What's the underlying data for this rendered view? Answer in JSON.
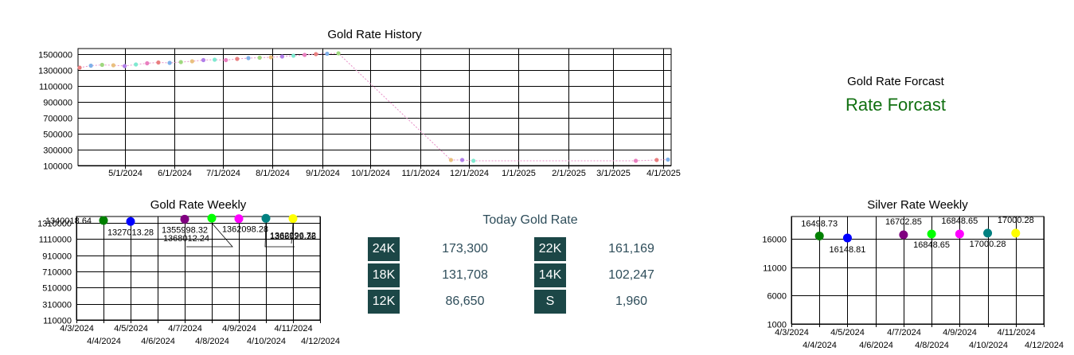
{
  "chart_data": [
    {
      "type": "scatter",
      "title": "Gold Rate History",
      "xlabel": "",
      "ylabel": "",
      "ylim": [
        100000,
        1500000
      ],
      "y_ticks": [
        1500000,
        1300000,
        1100000,
        900000,
        700000,
        500000,
        300000,
        100000
      ],
      "x_ticks": [
        "5/1/2024",
        "6/1/2024",
        "7/1/2024",
        "8/1/2024",
        "9/1/2024",
        "10/1/2024",
        "11/1/2024",
        "12/1/2024",
        "1/1/2025",
        "2/1/2025",
        "3/1/2025",
        "4/1/2025"
      ],
      "xlim": [
        "4/2/2024",
        "4/6/2025"
      ],
      "grid": true,
      "series": [
        {
          "x": [
            "4/3/2024",
            "4/10/2024",
            "4/17/2024",
            "4/24/2024",
            "5/1/2024",
            "5/8/2024",
            "5/15/2024",
            "5/22/2024",
            "5/29/2024",
            "6/5/2024",
            "6/12/2024",
            "6/19/2024",
            "6/26/2024",
            "7/3/2024",
            "7/10/2024",
            "7/17/2024",
            "7/24/2024",
            "7/31/2024",
            "8/7/2024",
            "8/14/2024",
            "8/21/2024",
            "8/28/2024",
            "9/4/2024",
            "9/11/2024",
            "11/20/2024",
            "11/27/2024",
            "12/4/2024",
            "3/15/2025",
            "3/28/2025",
            "4/4/2025"
          ],
          "y": [
            1330000,
            1355000,
            1365000,
            1360000,
            1350000,
            1370000,
            1385000,
            1395000,
            1390000,
            1400000,
            1410000,
            1425000,
            1430000,
            1425000,
            1440000,
            1450000,
            1455000,
            1460000,
            1470000,
            1480000,
            1490000,
            1500000,
            1505000,
            1510000,
            170000,
            170000,
            160000,
            160000,
            170000,
            175000
          ]
        }
      ]
    },
    {
      "type": "scatter",
      "title": "Gold Rate Weekly",
      "xlabel": "",
      "ylabel": "",
      "ylim": [
        110000,
        1310000
      ],
      "y_ticks": [
        1310000,
        1110000,
        910000,
        710000,
        510000,
        310000,
        110000
      ],
      "x_ticks": [
        "4/3/2024",
        "4/4/2024",
        "4/5/2024",
        "4/6/2024",
        "4/7/2024",
        "4/8/2024",
        "4/9/2024",
        "4/10/2024",
        "4/11/2024",
        "4/12/2024"
      ],
      "grid": true,
      "series": [
        {
          "x": [
            "4/4/2024",
            "4/5/2024",
            "4/7/2024",
            "4/8/2024",
            "4/9/2024",
            "4/10/2024",
            "4/11/2024"
          ],
          "y": [
            1340018.64,
            1327013.28,
            1355998.32,
            1368012.24,
            1362098.28,
            1366029.36,
            1362996.72
          ],
          "labels": [
            "1340018.64",
            "1327013.28",
            "1355998.32",
            "1368012.24",
            "1362098.28",
            "1366029.36",
            "1362996.72"
          ],
          "colors": [
            "#008000",
            "#0000ff",
            "#800080",
            "#00ff00",
            "#ff00ff",
            "#008080",
            "#ffff00"
          ]
        }
      ]
    },
    {
      "type": "scatter",
      "title": "Silver Rate Weekly",
      "xlabel": "",
      "ylabel": "",
      "ylim": [
        1000,
        21000
      ],
      "y_ticks": [
        16000,
        11000,
        6000,
        1000
      ],
      "x_ticks": [
        "4/3/2024",
        "4/4/2024",
        "4/5/2024",
        "4/6/2024",
        "4/7/2024",
        "4/8/2024",
        "4/9/2024",
        "4/10/2024",
        "4/11/2024",
        "4/12/2024"
      ],
      "grid": true,
      "series": [
        {
          "x": [
            "4/4/2024",
            "4/5/2024",
            "4/7/2024",
            "4/8/2024",
            "4/9/2024",
            "4/10/2024",
            "4/11/2024"
          ],
          "y": [
            16498.73,
            16148.81,
            16702.85,
            16848.65,
            16848.65,
            17000.28,
            17000.28
          ],
          "labels": [
            "16498.73",
            "16148.81",
            "16702.85",
            "16848.65",
            "16848.65",
            "17000.28",
            "17000.28"
          ],
          "colors": [
            "#008000",
            "#0000ff",
            "#800080",
            "#00ff00",
            "#ff00ff",
            "#008080",
            "#ffff00"
          ]
        }
      ]
    }
  ],
  "forecast": {
    "title": "Gold Rate Forcast",
    "headline": "Rate Forcast"
  },
  "today": {
    "title": "Today Gold Rate",
    "rows": [
      [
        {
          "key": "24K",
          "value": "173,300"
        },
        {
          "key": "22K",
          "value": "161,169"
        }
      ],
      [
        {
          "key": "18K",
          "value": "131,708"
        },
        {
          "key": "14K",
          "value": "102,247"
        }
      ],
      [
        {
          "key": "12K",
          "value": "86,650"
        },
        {
          "key": "S",
          "value": "1,960"
        }
      ]
    ]
  },
  "colors": {
    "rate_key_bg": "#1c4747",
    "forecast_text": "#117011",
    "today_text": "#2e4d5a"
  }
}
